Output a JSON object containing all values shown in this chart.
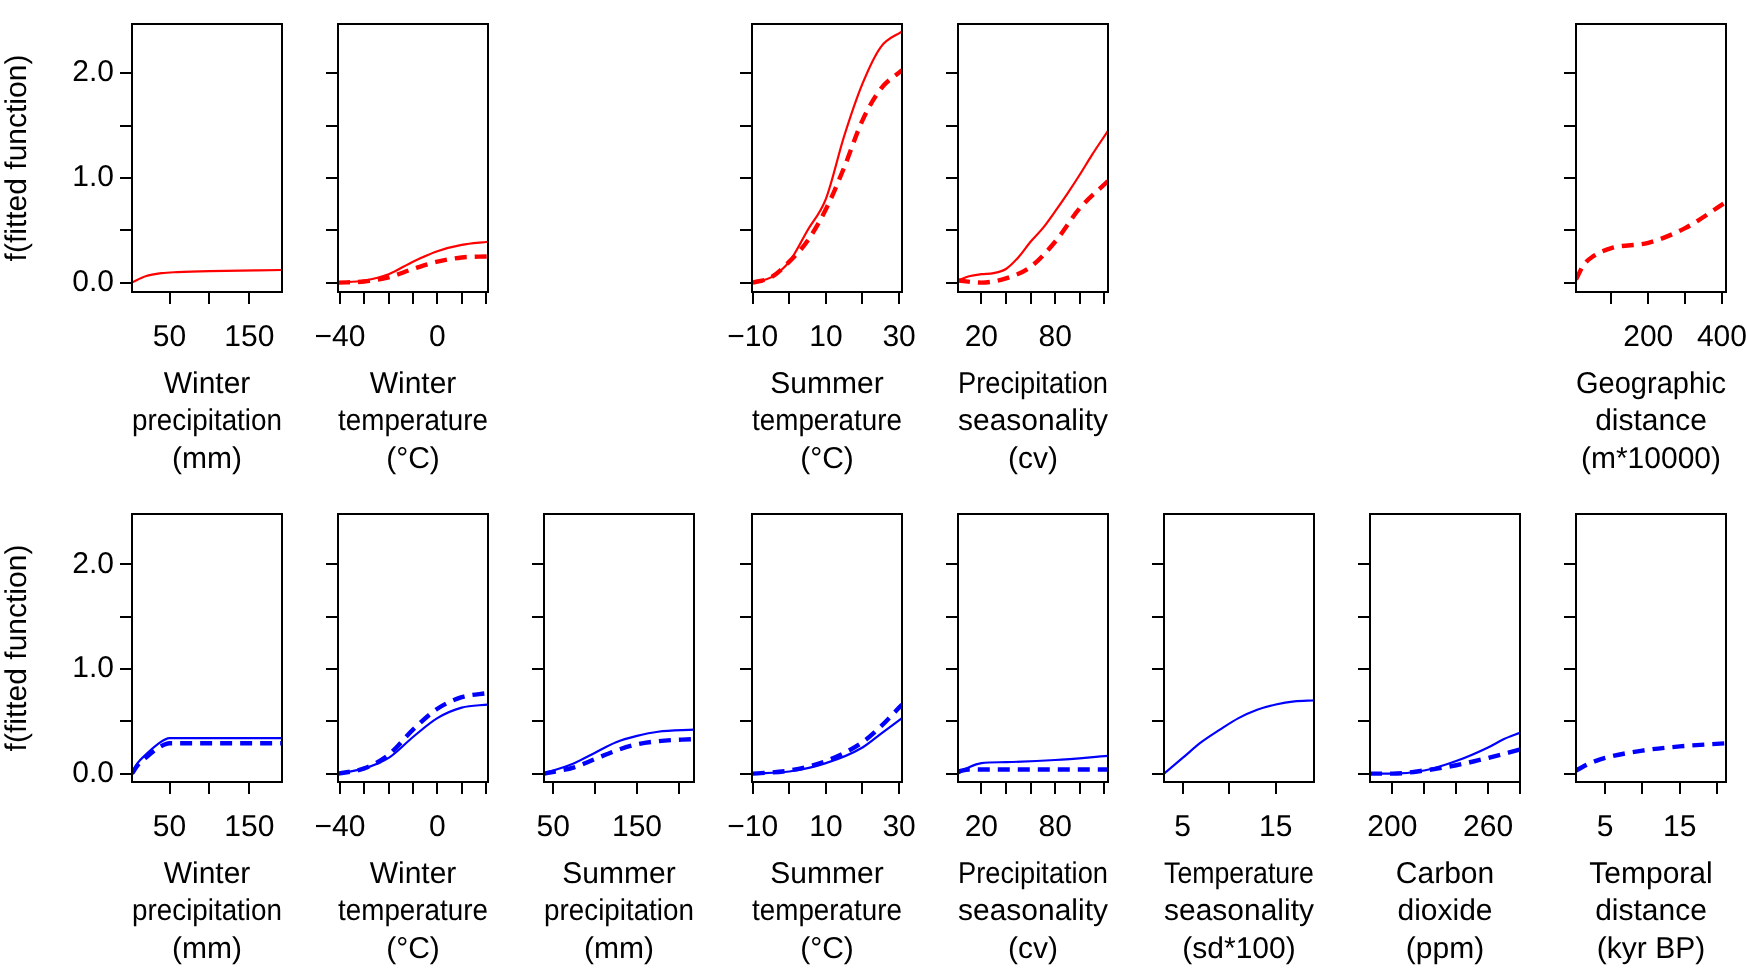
{
  "chart_data": [
    {
      "type": "line",
      "xlabel": "Winter\nprecipitation\n(mm)",
      "ylabel": "f(fitted function)",
      "xlim": [
        3,
        191
      ],
      "xticks": [
        50,
        {
          "value": 100,
          "label": null
        },
        150
      ],
      "ylim": [
        -0.09,
        2.47
      ],
      "yticks": [
        {
          "value": 0,
          "label": "0.0"
        },
        {
          "value": 0.5,
          "label": null
        },
        {
          "value": 1,
          "label": "1.0"
        },
        {
          "value": 1.5,
          "label": null
        },
        {
          "value": 2,
          "label": "2.0"
        }
      ],
      "series": [
        {
          "color": "#ff0000",
          "line_style": "solid",
          "x": [
            3,
            20,
            40,
            60,
            100,
            191
          ],
          "values": [
            0,
            0.06,
            0.09,
            0.1,
            0.11,
            0.12
          ]
        }
      ]
    },
    {
      "type": "line",
      "xlabel": "Winter\ntemperature\n(°C)",
      "xlim": [
        -40.8,
        20.8
      ],
      "xticks": [
        {
          "value": -40,
          "label": "−40"
        },
        {
          "value": -30,
          "label": null
        },
        {
          "value": -20,
          "label": null
        },
        {
          "value": -10,
          "label": null
        },
        0,
        {
          "value": 10,
          "label": null
        },
        {
          "value": 20,
          "label": null
        }
      ],
      "ylim": [
        -0.09,
        2.47
      ],
      "yticks": [
        {
          "value": 0,
          "label": null
        },
        {
          "value": 0.5,
          "label": null
        },
        {
          "value": 1,
          "label": null
        },
        {
          "value": 1.5,
          "label": null
        },
        {
          "value": 2,
          "label": null
        }
      ],
      "tick_labels": "x",
      "series": [
        {
          "color": "#ff0000",
          "line_style": "solid",
          "x": [
            -40.8,
            -30,
            -20,
            -10,
            0,
            10,
            20.8
          ],
          "values": [
            0,
            0.02,
            0.08,
            0.2,
            0.3,
            0.36,
            0.39
          ]
        },
        {
          "color": "#ff0000",
          "line_style": "dashed",
          "x": [
            -40.8,
            -30,
            -20,
            -10,
            0,
            10,
            20.8
          ],
          "values": [
            0,
            0.01,
            0.05,
            0.13,
            0.2,
            0.24,
            0.25
          ]
        }
      ]
    },
    {
      "type": "line",
      "xlabel": "Summer\ntemperature\n(°C)",
      "xlim": [
        -10.2,
        30.8
      ],
      "xticks": [
        {
          "value": -10,
          "label": "−10"
        },
        {
          "value": 0,
          "label": null
        },
        10,
        {
          "value": 20,
          "label": null
        },
        30
      ],
      "ylim": [
        -0.09,
        2.47
      ],
      "yticks": [
        {
          "value": 0,
          "label": null
        },
        {
          "value": 0.5,
          "label": null
        },
        {
          "value": 1,
          "label": null
        },
        {
          "value": 1.5,
          "label": null
        },
        {
          "value": 2,
          "label": null
        }
      ],
      "tick_labels": "x",
      "series": [
        {
          "color": "#ff0000",
          "line_style": "solid",
          "x": [
            -10,
            -5,
            0,
            5,
            10,
            15,
            20,
            25,
            30.8
          ],
          "values": [
            0,
            0.05,
            0.2,
            0.5,
            0.8,
            1.4,
            1.9,
            2.25,
            2.4
          ]
        },
        {
          "color": "#ff0000",
          "line_style": "dashed",
          "x": [
            -10,
            -5,
            0,
            5,
            10,
            15,
            20,
            25,
            30.8
          ],
          "values": [
            0,
            0.05,
            0.2,
            0.4,
            0.7,
            1.1,
            1.55,
            1.85,
            2.03
          ]
        }
      ]
    },
    {
      "type": "line",
      "xlabel": "Precipitation\nseasonality\n(cv)",
      "xlim": [
        1,
        123
      ],
      "xticks": [
        20,
        {
          "value": 40,
          "label": null
        },
        {
          "value": 60,
          "label": null
        },
        80,
        {
          "value": 100,
          "label": null
        },
        {
          "value": 120,
          "label": null
        }
      ],
      "ylim": [
        -0.09,
        2.47
      ],
      "yticks": [
        {
          "value": 0,
          "label": null
        },
        {
          "value": 0.5,
          "label": null
        },
        {
          "value": 1,
          "label": null
        },
        {
          "value": 1.5,
          "label": null
        },
        {
          "value": 2,
          "label": null
        }
      ],
      "tick_labels": "x",
      "series": [
        {
          "color": "#ff0000",
          "line_style": "solid",
          "x": [
            1,
            10,
            20,
            30,
            40,
            50,
            60,
            70,
            80,
            90,
            100,
            110,
            123
          ],
          "values": [
            0.02,
            0.06,
            0.08,
            0.09,
            0.13,
            0.24,
            0.39,
            0.52,
            0.68,
            0.85,
            1.03,
            1.22,
            1.45
          ]
        },
        {
          "color": "#ff0000",
          "line_style": "dashed",
          "x": [
            1,
            20,
            40,
            60,
            80,
            100,
            123
          ],
          "values": [
            0.02,
            0,
            0.04,
            0.15,
            0.39,
            0.71,
            0.97
          ]
        }
      ]
    },
    {
      "type": "line",
      "xlabel": "Geographic\ndistance\n(m*10000)",
      "xlim": [
        4,
        411
      ],
      "xticks": [
        {
          "value": 100,
          "label": null
        },
        200,
        {
          "value": 300,
          "label": null
        },
        400
      ],
      "ylim": [
        -0.09,
        2.47
      ],
      "yticks": [
        {
          "value": 0,
          "label": null
        },
        {
          "value": 0.5,
          "label": null
        },
        {
          "value": 1,
          "label": null
        },
        {
          "value": 1.5,
          "label": null
        },
        {
          "value": 2,
          "label": null
        }
      ],
      "tick_labels": "x",
      "series": [
        {
          "color": "#ff0000",
          "line_style": "dashed",
          "x": [
            4,
            25,
            50,
            100,
            200,
            300,
            411
          ],
          "values": [
            0.03,
            0.17,
            0.25,
            0.33,
            0.38,
            0.52,
            0.77
          ]
        }
      ]
    },
    {
      "type": "line",
      "xlabel": "Winter\nprecipitation\n(mm)",
      "ylabel": "f(fitted function)",
      "xlim": [
        3,
        191
      ],
      "xticks": [
        50,
        {
          "value": 100,
          "label": null
        },
        150
      ],
      "ylim": [
        -0.08,
        2.48
      ],
      "yticks": [
        {
          "value": 0,
          "label": "0.0"
        },
        {
          "value": 0.5,
          "label": null
        },
        {
          "value": 1,
          "label": "1.0"
        },
        {
          "value": 1.5,
          "label": null
        },
        {
          "value": 2,
          "label": "2.0"
        }
      ],
      "series": [
        {
          "color": "#0000ff",
          "line_style": "solid",
          "x": [
            3,
            10,
            20,
            35,
            50,
            191
          ],
          "values": [
            0,
            0.1,
            0.18,
            0.28,
            0.34,
            0.34
          ]
        },
        {
          "color": "#0000ff",
          "line_style": "dashed",
          "x": [
            3,
            10,
            20,
            35,
            50,
            191
          ],
          "values": [
            0,
            0.08,
            0.15,
            0.24,
            0.29,
            0.29
          ]
        }
      ]
    },
    {
      "type": "line",
      "xlabel": "Winter\ntemperature\n(°C)",
      "xlim": [
        -40.8,
        20.8
      ],
      "xticks": [
        {
          "value": -40,
          "label": "−40"
        },
        {
          "value": -30,
          "label": null
        },
        {
          "value": -20,
          "label": null
        },
        {
          "value": -10,
          "label": null
        },
        0,
        {
          "value": 10,
          "label": null
        },
        {
          "value": 20,
          "label": null
        }
      ],
      "ylim": [
        -0.08,
        2.48
      ],
      "yticks": [
        {
          "value": 0,
          "label": null
        },
        {
          "value": 0.5,
          "label": null
        },
        {
          "value": 1,
          "label": null
        },
        {
          "value": 1.5,
          "label": null
        },
        {
          "value": 2,
          "label": null
        }
      ],
      "tick_labels": "x",
      "series": [
        {
          "color": "#0000ff",
          "line_style": "solid",
          "x": [
            -40.8,
            -30,
            -20,
            -10,
            0,
            10,
            20.8
          ],
          "values": [
            0,
            0.05,
            0.15,
            0.35,
            0.53,
            0.63,
            0.66
          ]
        },
        {
          "color": "#0000ff",
          "line_style": "dashed",
          "x": [
            -40.8,
            -30,
            -20,
            -10,
            0,
            10,
            20.8
          ],
          "values": [
            0,
            0.05,
            0.18,
            0.42,
            0.62,
            0.73,
            0.77
          ]
        }
      ]
    },
    {
      "type": "line",
      "xlabel": "Summer\nprecipitation\n(mm)",
      "xlim": [
        39,
        218
      ],
      "xticks": [
        50,
        {
          "value": 100,
          "label": null
        },
        150,
        {
          "value": 200,
          "label": null
        }
      ],
      "ylim": [
        -0.08,
        2.48
      ],
      "yticks": [
        {
          "value": 0,
          "label": null
        },
        {
          "value": 0.5,
          "label": null
        },
        {
          "value": 1,
          "label": null
        },
        {
          "value": 1.5,
          "label": null
        },
        {
          "value": 2,
          "label": null
        }
      ],
      "tick_labels": "x",
      "series": [
        {
          "color": "#0000ff",
          "line_style": "solid",
          "x": [
            39,
            75,
            100,
            125,
            150,
            175,
            218
          ],
          "values": [
            0,
            0.1,
            0.2,
            0.3,
            0.36,
            0.4,
            0.42
          ]
        },
        {
          "color": "#0000ff",
          "line_style": "dashed",
          "x": [
            39,
            75,
            100,
            125,
            150,
            175,
            218
          ],
          "values": [
            0,
            0.06,
            0.14,
            0.22,
            0.28,
            0.31,
            0.33
          ]
        }
      ]
    },
    {
      "type": "line",
      "xlabel": "Summer\ntemperature\n(°C)",
      "xlim": [
        -10.2,
        30.8
      ],
      "xticks": [
        {
          "value": -10,
          "label": "−10"
        },
        {
          "value": 0,
          "label": null
        },
        10,
        {
          "value": 20,
          "label": null
        },
        30
      ],
      "ylim": [
        -0.08,
        2.48
      ],
      "yticks": [
        {
          "value": 0,
          "label": null
        },
        {
          "value": 0.5,
          "label": null
        },
        {
          "value": 1,
          "label": null
        },
        {
          "value": 1.5,
          "label": null
        },
        {
          "value": 2,
          "label": null
        }
      ],
      "tick_labels": "x",
      "series": [
        {
          "color": "#0000ff",
          "line_style": "solid",
          "x": [
            -10,
            0,
            10,
            20,
            25,
            30.8
          ],
          "values": [
            0,
            0.02,
            0.1,
            0.25,
            0.38,
            0.53
          ]
        },
        {
          "color": "#0000ff",
          "line_style": "dashed",
          "x": [
            -10,
            0,
            10,
            20,
            25,
            30.8
          ],
          "values": [
            0,
            0.03,
            0.12,
            0.3,
            0.45,
            0.66
          ]
        }
      ]
    },
    {
      "type": "line",
      "xlabel": "Precipitation\nseasonality\n(cv)",
      "xlim": [
        1,
        123
      ],
      "xticks": [
        20,
        {
          "value": 40,
          "label": null
        },
        {
          "value": 60,
          "label": null
        },
        80,
        {
          "value": 100,
          "label": null
        },
        {
          "value": 120,
          "label": null
        }
      ],
      "ylim": [
        -0.08,
        2.48
      ],
      "yticks": [
        {
          "value": 0,
          "label": null
        },
        {
          "value": 0.5,
          "label": null
        },
        {
          "value": 1,
          "label": null
        },
        {
          "value": 1.5,
          "label": null
        },
        {
          "value": 2,
          "label": null
        }
      ],
      "tick_labels": "x",
      "series": [
        {
          "color": "#0000ff",
          "line_style": "solid",
          "x": [
            1,
            10,
            20,
            40,
            80,
            123
          ],
          "values": [
            0,
            0.06,
            0.1,
            0.11,
            0.13,
            0.17
          ]
        },
        {
          "color": "#0000ff",
          "line_style": "dashed",
          "x": [
            1,
            10,
            123
          ],
          "values": [
            0.02,
            0.04,
            0.04
          ]
        }
      ]
    },
    {
      "type": "line",
      "xlabel": "Temperature\nseasonality\n(sd*100)",
      "xlim": [
        3,
        19.1
      ],
      "xticks": [
        5,
        {
          "value": 10,
          "label": null
        },
        15
      ],
      "ylim": [
        -0.08,
        2.48
      ],
      "yticks": [
        {
          "value": 0,
          "label": null
        },
        {
          "value": 0.5,
          "label": null
        },
        {
          "value": 1,
          "label": null
        },
        {
          "value": 1.5,
          "label": null
        },
        {
          "value": 2,
          "label": null
        }
      ],
      "tick_labels": "x",
      "series": [
        {
          "color": "#0000ff",
          "line_style": "solid",
          "x": [
            3,
            5,
            7,
            9,
            11,
            13,
            15,
            17,
            19.1
          ],
          "values": [
            0,
            0.15,
            0.3,
            0.42,
            0.53,
            0.61,
            0.66,
            0.69,
            0.7
          ]
        }
      ]
    },
    {
      "type": "line",
      "xlabel": "Carbon\ndioxide\n(ppm)",
      "xlim": [
        186,
        280
      ],
      "xticks": [
        200,
        {
          "value": 220,
          "label": null
        },
        {
          "value": 240,
          "label": null
        },
        260,
        {
          "value": 280,
          "label": null
        }
      ],
      "ylim": [
        -0.08,
        2.48
      ],
      "yticks": [
        {
          "value": 0,
          "label": null
        },
        {
          "value": 0.5,
          "label": null
        },
        {
          "value": 1,
          "label": null
        },
        {
          "value": 1.5,
          "label": null
        },
        {
          "value": 2,
          "label": null
        }
      ],
      "tick_labels": "x",
      "series": [
        {
          "color": "#0000ff",
          "line_style": "solid",
          "x": [
            186,
            200,
            220,
            240,
            260,
            270,
            280
          ],
          "values": [
            0,
            0,
            0.03,
            0.12,
            0.25,
            0.33,
            0.39
          ]
        },
        {
          "color": "#0000ff",
          "line_style": "dashed",
          "x": [
            186,
            200,
            220,
            240,
            260,
            280
          ],
          "values": [
            0,
            0,
            0.03,
            0.08,
            0.15,
            0.23
          ]
        }
      ]
    },
    {
      "type": "line",
      "xlabel": "Temporal\ndistance\n(kyr BP)",
      "xlim": [
        1.1,
        21.2
      ],
      "xticks": [
        5,
        {
          "value": 10,
          "label": null
        },
        15,
        {
          "value": 20,
          "label": null
        }
      ],
      "ylim": [
        -0.08,
        2.48
      ],
      "yticks": [
        {
          "value": 0,
          "label": null
        },
        {
          "value": 0.5,
          "label": null
        },
        {
          "value": 1,
          "label": null
        },
        {
          "value": 1.5,
          "label": null
        },
        {
          "value": 2,
          "label": null
        }
      ],
      "tick_labels": "x",
      "series": [
        {
          "color": "#0000ff",
          "line_style": "dashed",
          "x": [
            1.1,
            3,
            5,
            10,
            15,
            21.2
          ],
          "values": [
            0.03,
            0.1,
            0.15,
            0.22,
            0.26,
            0.29
          ]
        }
      ]
    }
  ]
}
